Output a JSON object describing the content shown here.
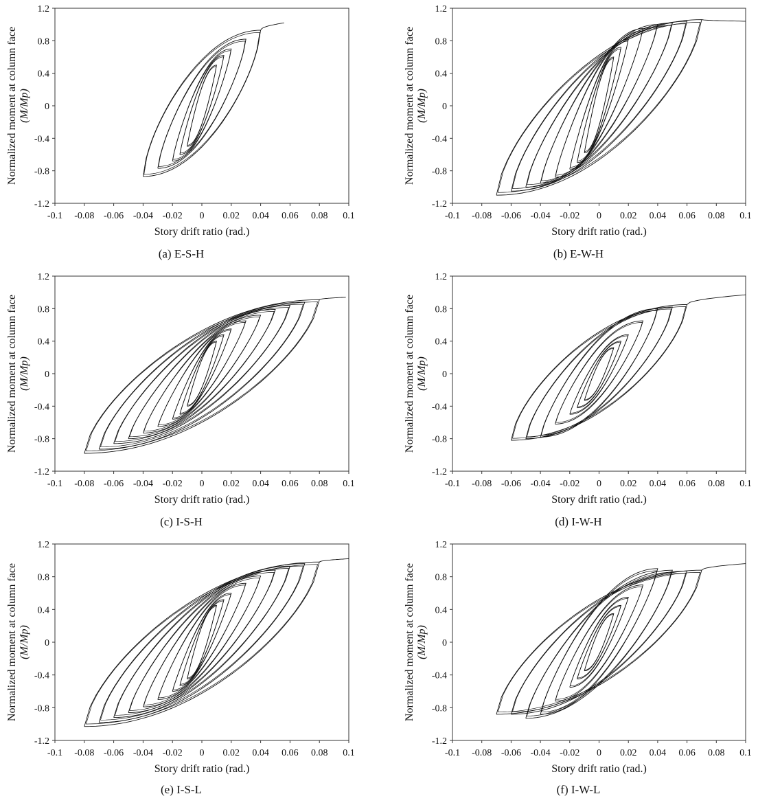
{
  "figure": {
    "panels": [
      {
        "caption": "(a) E-S-H"
      },
      {
        "caption": "(b) E-W-H"
      },
      {
        "caption": "(c) I-S-H"
      },
      {
        "caption": "(d) I-W-H"
      },
      {
        "caption": "(e) I-S-L"
      },
      {
        "caption": "(f) I-W-L"
      }
    ]
  },
  "chart_data": [
    {
      "type": "line",
      "caption": "(a) E-S-H",
      "xlabel": "Story drift ratio (rad.)",
      "ylabel_line1": "Normalized moment at column face",
      "ylabel_line2": "(M/Mp)",
      "xlim": [
        -0.1,
        0.1
      ],
      "ylim": [
        -1.2,
        1.2
      ],
      "xticks": [
        "-0.1",
        "-0.08",
        "-0.06",
        "-0.04",
        "-0.02",
        "0",
        "0.02",
        "0.04",
        "0.06",
        "0.08",
        "0.1"
      ],
      "yticks": [
        "1.2",
        "0.8",
        "0.4",
        "0",
        "-0.4",
        "-0.8",
        "-1.2"
      ],
      "loops": [
        {
          "drift": 0.01,
          "m_pos": 0.5,
          "m_neg": -0.5
        },
        {
          "drift": 0.015,
          "m_pos": 0.62,
          "m_neg": -0.6
        },
        {
          "drift": 0.02,
          "m_pos": 0.7,
          "m_neg": -0.68
        },
        {
          "drift": 0.03,
          "m_pos": 0.82,
          "m_neg": -0.77
        },
        {
          "drift": 0.04,
          "m_pos": 0.93,
          "m_neg": -0.87
        }
      ],
      "monotonic_tail": {
        "from_drift": 0.04,
        "to_drift": 0.056,
        "m_start": 0.93,
        "m_end": 1.02
      }
    },
    {
      "type": "line",
      "caption": "(b) E-W-H",
      "xlabel": "Story drift ratio (rad.)",
      "ylabel_line1": "Normalized moment at column face",
      "ylabel_line2": "(M/Mp)",
      "xlim": [
        -0.1,
        0.1
      ],
      "ylim": [
        -1.2,
        1.2
      ],
      "xticks": [
        "-0.1",
        "-0.08",
        "-0.06",
        "-0.04",
        "-0.02",
        "0",
        "0.02",
        "0.04",
        "0.06",
        "0.08",
        "0.1"
      ],
      "yticks": [
        "1.2",
        "0.8",
        "0.4",
        "0",
        "-0.4",
        "-0.8",
        "-1.2"
      ],
      "loops": [
        {
          "drift": 0.01,
          "m_pos": 0.6,
          "m_neg": -0.58
        },
        {
          "drift": 0.015,
          "m_pos": 0.72,
          "m_neg": -0.7
        },
        {
          "drift": 0.02,
          "m_pos": 0.82,
          "m_neg": -0.78
        },
        {
          "drift": 0.03,
          "m_pos": 0.95,
          "m_neg": -0.88
        },
        {
          "drift": 0.04,
          "m_pos": 1.0,
          "m_neg": -0.95
        },
        {
          "drift": 0.05,
          "m_pos": 1.02,
          "m_neg": -1.0
        },
        {
          "drift": 0.06,
          "m_pos": 1.04,
          "m_neg": -1.05
        },
        {
          "drift": 0.07,
          "m_pos": 1.06,
          "m_neg": -1.1
        }
      ],
      "monotonic_tail": {
        "from_drift": 0.07,
        "to_drift": 0.1,
        "m_start": 1.06,
        "m_end": 1.04
      }
    },
    {
      "type": "line",
      "caption": "(c) I-S-H",
      "xlabel": "Story drift ratio (rad.)",
      "ylabel_line1": "Normalized moment at column face",
      "ylabel_line2": "(M/Mp)",
      "xlim": [
        -0.1,
        0.1
      ],
      "ylim": [
        -1.2,
        1.2
      ],
      "xticks": [
        "-0.1",
        "-0.08",
        "-0.06",
        "-0.04",
        "-0.02",
        "0",
        "0.02",
        "0.04",
        "0.06",
        "0.08",
        "0.1"
      ],
      "yticks": [
        "1.2",
        "0.8",
        "0.4",
        "0",
        "-0.4",
        "-0.8",
        "-1.2"
      ],
      "loops": [
        {
          "drift": 0.01,
          "m_pos": 0.4,
          "m_neg": -0.4
        },
        {
          "drift": 0.015,
          "m_pos": 0.48,
          "m_neg": -0.5
        },
        {
          "drift": 0.02,
          "m_pos": 0.55,
          "m_neg": -0.56
        },
        {
          "drift": 0.03,
          "m_pos": 0.65,
          "m_neg": -0.65
        },
        {
          "drift": 0.04,
          "m_pos": 0.72,
          "m_neg": -0.73
        },
        {
          "drift": 0.05,
          "m_pos": 0.79,
          "m_neg": -0.8
        },
        {
          "drift": 0.06,
          "m_pos": 0.84,
          "m_neg": -0.86
        },
        {
          "drift": 0.07,
          "m_pos": 0.88,
          "m_neg": -0.93
        },
        {
          "drift": 0.08,
          "m_pos": 0.91,
          "m_neg": -0.98
        }
      ],
      "monotonic_tail": {
        "from_drift": 0.08,
        "to_drift": 0.098,
        "m_start": 0.91,
        "m_end": 0.94
      }
    },
    {
      "type": "line",
      "caption": "(d) I-W-H",
      "xlabel": "Story drift ratio (rad.)",
      "ylabel_line1": "Normalized moment at column face",
      "ylabel_line2": "(M/Mp)",
      "xlim": [
        -0.1,
        0.1
      ],
      "ylim": [
        -1.2,
        1.2
      ],
      "xticks": [
        "-0.1",
        "-0.08",
        "-0.06",
        "-0.04",
        "-0.02",
        "0",
        "0.02",
        "0.04",
        "0.06",
        "0.08",
        "0.1"
      ],
      "yticks": [
        "1.2",
        "0.8",
        "0.4",
        "0",
        "-0.4",
        "-0.8",
        "-1.2"
      ],
      "loops": [
        {
          "drift": 0.01,
          "m_pos": 0.32,
          "m_neg": -0.33
        },
        {
          "drift": 0.015,
          "m_pos": 0.4,
          "m_neg": -0.42
        },
        {
          "drift": 0.02,
          "m_pos": 0.48,
          "m_neg": -0.5
        },
        {
          "drift": 0.03,
          "m_pos": 0.65,
          "m_neg": -0.62
        },
        {
          "drift": 0.04,
          "m_pos": 0.8,
          "m_neg": -0.78
        },
        {
          "drift": 0.05,
          "m_pos": 0.82,
          "m_neg": -0.8
        },
        {
          "drift": 0.06,
          "m_pos": 0.85,
          "m_neg": -0.82
        }
      ],
      "monotonic_tail": {
        "from_drift": 0.06,
        "to_drift": 0.1,
        "m_start": 0.85,
        "m_end": 0.97
      }
    },
    {
      "type": "line",
      "caption": "(e) I-S-L",
      "xlabel": "Story drift ratio (rad.)",
      "ylabel_line1": "Normalized moment at column face",
      "ylabel_line2": "(M/Mp)",
      "xlim": [
        -0.1,
        0.1
      ],
      "ylim": [
        -1.2,
        1.2
      ],
      "xticks": [
        "-0.1",
        "-0.08",
        "-0.06",
        "-0.04",
        "-0.02",
        "0",
        "0.02",
        "0.04",
        "0.06",
        "0.08",
        "0.1"
      ],
      "yticks": [
        "1.2",
        "0.8",
        "0.4",
        "0",
        "-0.4",
        "-0.8",
        "-1.2"
      ],
      "loops": [
        {
          "drift": 0.01,
          "m_pos": 0.45,
          "m_neg": -0.45
        },
        {
          "drift": 0.015,
          "m_pos": 0.52,
          "m_neg": -0.53
        },
        {
          "drift": 0.02,
          "m_pos": 0.6,
          "m_neg": -0.6
        },
        {
          "drift": 0.03,
          "m_pos": 0.72,
          "m_neg": -0.7
        },
        {
          "drift": 0.04,
          "m_pos": 0.81,
          "m_neg": -0.79
        },
        {
          "drift": 0.05,
          "m_pos": 0.88,
          "m_neg": -0.86
        },
        {
          "drift": 0.06,
          "m_pos": 0.93,
          "m_neg": -0.92
        },
        {
          "drift": 0.07,
          "m_pos": 0.96,
          "m_neg": -0.98
        },
        {
          "drift": 0.08,
          "m_pos": 0.98,
          "m_neg": -1.03
        }
      ],
      "monotonic_tail": {
        "from_drift": 0.08,
        "to_drift": 0.1,
        "m_start": 0.98,
        "m_end": 1.02
      }
    },
    {
      "type": "line",
      "caption": "(f) I-W-L",
      "xlabel": "Story drift ratio (rad.)",
      "ylabel_line1": "Normalized moment at column face",
      "ylabel_line2": "(M/Mp)",
      "xlim": [
        -0.1,
        0.1
      ],
      "ylim": [
        -1.2,
        1.2
      ],
      "xticks": [
        "-0.1",
        "-0.08",
        "-0.06",
        "-0.04",
        "-0.02",
        "0",
        "0.02",
        "0.04",
        "0.06",
        "0.08",
        "0.1"
      ],
      "yticks": [
        "1.2",
        "0.8",
        "0.4",
        "0",
        "-0.4",
        "-0.8",
        "-1.2"
      ],
      "loops": [
        {
          "drift": 0.01,
          "m_pos": 0.35,
          "m_neg": -0.35
        },
        {
          "drift": 0.015,
          "m_pos": 0.45,
          "m_neg": -0.45
        },
        {
          "drift": 0.02,
          "m_pos": 0.55,
          "m_neg": -0.55
        },
        {
          "drift": 0.03,
          "m_pos": 0.7,
          "m_neg": -0.72
        },
        {
          "drift": 0.04,
          "m_pos": 0.9,
          "m_neg": -0.88
        },
        {
          "drift": 0.05,
          "m_pos": 0.88,
          "m_neg": -0.93
        },
        {
          "drift": 0.06,
          "m_pos": 0.87,
          "m_neg": -0.88
        },
        {
          "drift": 0.07,
          "m_pos": 0.88,
          "m_neg": -0.88
        }
      ],
      "monotonic_tail": {
        "from_drift": 0.07,
        "to_drift": 0.1,
        "m_start": 0.88,
        "m_end": 0.96
      }
    }
  ]
}
